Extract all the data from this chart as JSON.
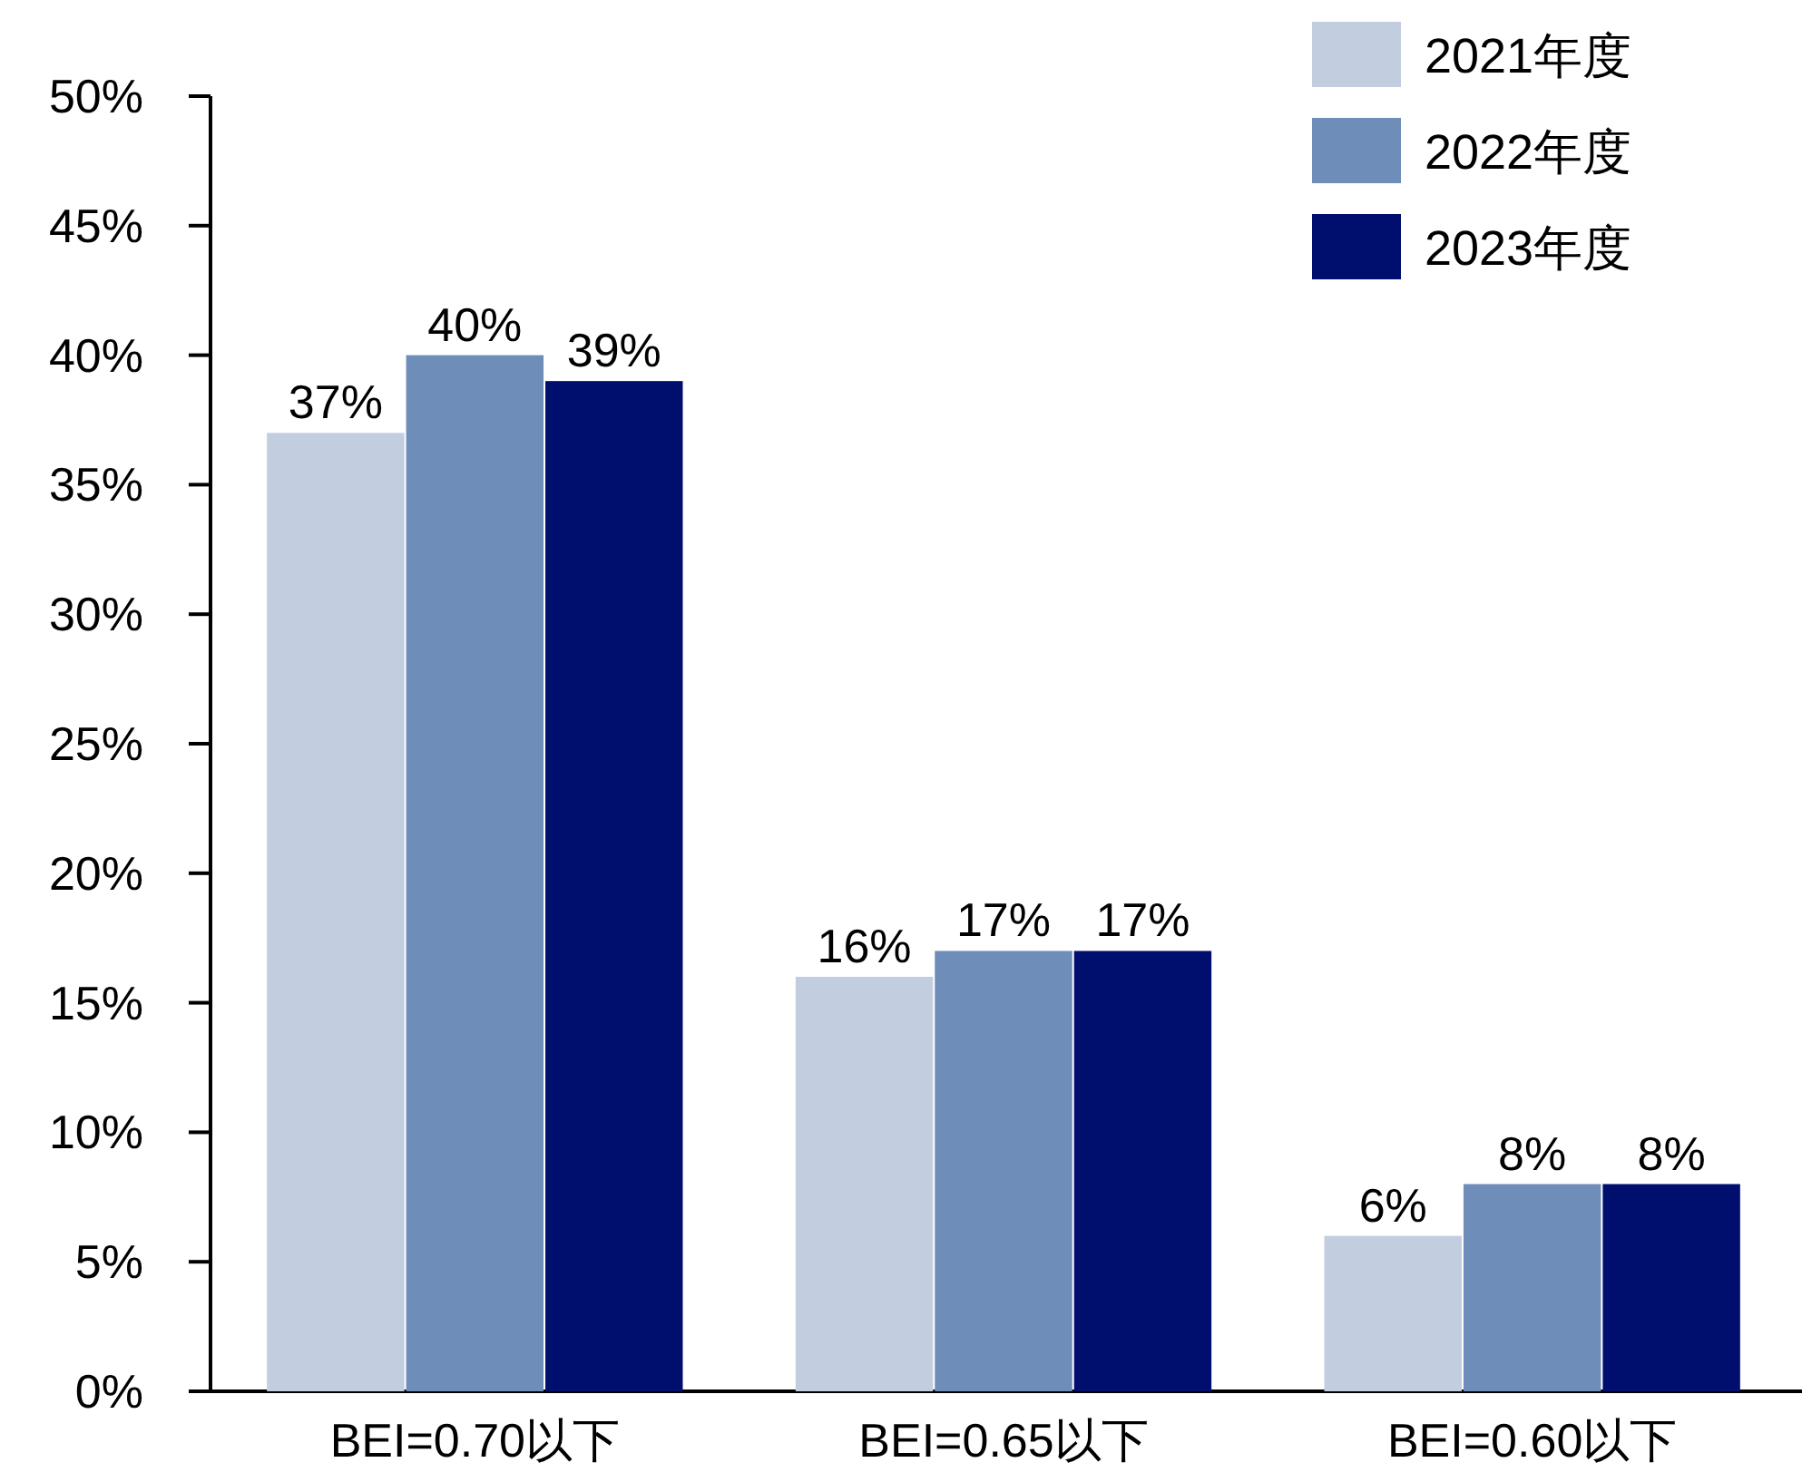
{
  "chart_data": {
    "type": "bar",
    "categories": [
      "BEI=0.70以下",
      "BEI=0.65以下",
      "BEI=0.60以下"
    ],
    "series": [
      {
        "name": "2021年度",
        "color": "#c3cde0",
        "values": [
          37,
          16,
          6
        ],
        "value_labels": [
          "37%",
          "16%",
          "6%"
        ]
      },
      {
        "name": "2022年度",
        "color": "#6e8db8",
        "values": [
          40,
          17,
          8
        ],
        "value_labels": [
          "40%",
          "17%",
          "8%"
        ]
      },
      {
        "name": "2023年度",
        "color": "#000e6e",
        "values": [
          39,
          17,
          8
        ],
        "value_labels": [
          "39%",
          "17%",
          "8%"
        ]
      }
    ],
    "ylim": [
      0,
      50
    ],
    "yticks": [
      {
        "value": 0,
        "label": "0%"
      },
      {
        "value": 5,
        "label": "5%"
      },
      {
        "value": 10,
        "label": "10%"
      },
      {
        "value": 15,
        "label": "15%"
      },
      {
        "value": 20,
        "label": "20%"
      },
      {
        "value": 25,
        "label": "25%"
      },
      {
        "value": 30,
        "label": "30%"
      },
      {
        "value": 35,
        "label": "35%"
      },
      {
        "value": 40,
        "label": "40%"
      },
      {
        "value": 45,
        "label": "45%"
      },
      {
        "value": 50,
        "label": "50%"
      }
    ],
    "legend": "top right"
  }
}
